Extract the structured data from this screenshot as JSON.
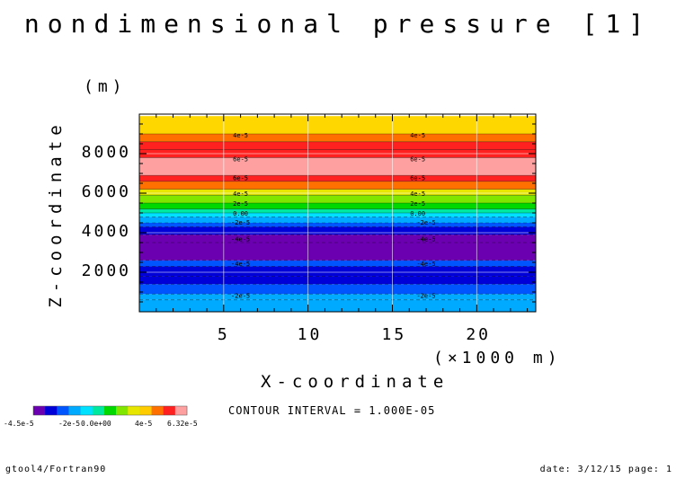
{
  "title": "nondimensional pressure [1]",
  "footer": {
    "left": "gtool4/Fortran90",
    "right": "date: 3/12/15 page: 1"
  },
  "contour_interval_text": "CONTOUR INTERVAL = 1.000E-05",
  "colorbar": {
    "colors": [
      "#6a00b0",
      "#0000d8",
      "#0055ff",
      "#00aaff",
      "#00e0ff",
      "#00e8a0",
      "#00d800",
      "#80e600",
      "#e6e600",
      "#ffcc00",
      "#ff7000",
      "#ff2020",
      "#ffa0a0"
    ],
    "labels": [
      "-4.5e-5",
      "-2e-5",
      "0.0e+00",
      "4e-5",
      "6.32e-5"
    ]
  },
  "chart_data": {
    "type": "heatmap",
    "title": "nondimensional pressure [1]",
    "xlabel": "X-coordinate",
    "xunit": "(×1000 m)",
    "ylabel": "Z-coordinate",
    "yunit": "(m)",
    "xlim": [
      0,
      23.5
    ],
    "ylim": [
      0,
      10000
    ],
    "xticks": [
      5,
      10,
      15,
      20
    ],
    "yticks": [
      2000,
      4000,
      6000,
      8000
    ],
    "grid": true,
    "bands": [
      {
        "z": [
          0,
          600
        ],
        "color": "#00aaff"
      },
      {
        "z": [
          600,
          900
        ],
        "color": "#00aaff"
      },
      {
        "z": [
          900,
          1400
        ],
        "color": "#0055ff"
      },
      {
        "z": [
          1400,
          1800
        ],
        "color": "#0000d8"
      },
      {
        "z": [
          1800,
          2300
        ],
        "color": "#0000d8"
      },
      {
        "z": [
          2300,
          2600
        ],
        "color": "#0055ff"
      },
      {
        "z": [
          2600,
          3500
        ],
        "color": "#6a00b0"
      },
      {
        "z": [
          3500,
          3900
        ],
        "color": "#6a00b0"
      },
      {
        "z": [
          3900,
          4300
        ],
        "color": "#0000d8"
      },
      {
        "z": [
          4300,
          4500
        ],
        "color": "#0055ff"
      },
      {
        "z": [
          4500,
          4800
        ],
        "color": "#00aaff"
      },
      {
        "z": [
          4800,
          5000
        ],
        "color": "#00e0ff"
      },
      {
        "z": [
          5000,
          5200
        ],
        "color": "#00e8a0"
      },
      {
        "z": [
          5200,
          5500
        ],
        "color": "#00d800"
      },
      {
        "z": [
          5500,
          5900
        ],
        "color": "#80e600"
      },
      {
        "z": [
          5900,
          6200
        ],
        "color": "#e6e600"
      },
      {
        "z": [
          6200,
          6600
        ],
        "color": "#ff7000"
      },
      {
        "z": [
          6600,
          6900
        ],
        "color": "#ff2020"
      },
      {
        "z": [
          6900,
          7800
        ],
        "color": "#ffa0a0"
      },
      {
        "z": [
          7800,
          8200
        ],
        "color": "#ff2020"
      },
      {
        "z": [
          8200,
          8600
        ],
        "color": "#ff2020"
      },
      {
        "z": [
          8600,
          9000
        ],
        "color": "#ff7000"
      },
      {
        "z": [
          9000,
          9900
        ],
        "color": "#ffd700"
      }
    ],
    "contour_labels": [
      {
        "x": 6.0,
        "z": 8950,
        "text": "4e-5"
      },
      {
        "x": 16.5,
        "z": 8950,
        "text": "4e-5"
      },
      {
        "x": 6.0,
        "z": 7750,
        "text": "6e-5"
      },
      {
        "x": 16.5,
        "z": 7750,
        "text": "6e-5"
      },
      {
        "x": 6.0,
        "z": 6800,
        "text": "6e-5"
      },
      {
        "x": 16.5,
        "z": 6800,
        "text": "6e-5"
      },
      {
        "x": 6.0,
        "z": 6000,
        "text": "4e-5"
      },
      {
        "x": 16.5,
        "z": 6000,
        "text": "4e-5"
      },
      {
        "x": 6.0,
        "z": 5500,
        "text": "2e-5"
      },
      {
        "x": 16.5,
        "z": 5500,
        "text": "2e-5"
      },
      {
        "x": 6.0,
        "z": 5000,
        "text": "0.00"
      },
      {
        "x": 16.5,
        "z": 5000,
        "text": "0.00"
      },
      {
        "x": 6.0,
        "z": 4550,
        "text": "-2e-5"
      },
      {
        "x": 17.0,
        "z": 4550,
        "text": "-2e-5"
      },
      {
        "x": 6.0,
        "z": 3700,
        "text": "-4e-5"
      },
      {
        "x": 17.0,
        "z": 3700,
        "text": "-4e-5"
      },
      {
        "x": 6.0,
        "z": 2450,
        "text": "-4e-5"
      },
      {
        "x": 17.0,
        "z": 2450,
        "text": "-4e-5"
      },
      {
        "x": 6.0,
        "z": 850,
        "text": "-2e-5"
      },
      {
        "x": 17.0,
        "z": 850,
        "text": "-2e-5"
      }
    ]
  }
}
